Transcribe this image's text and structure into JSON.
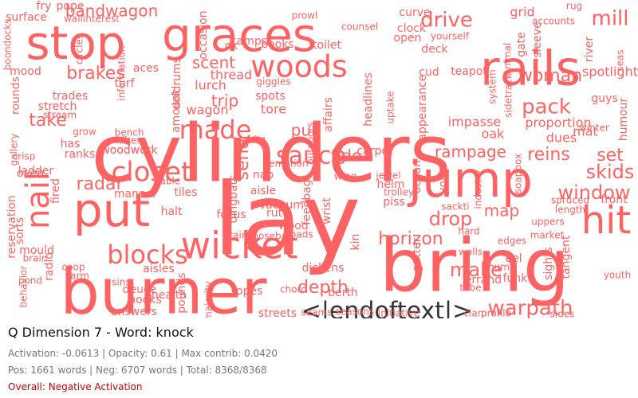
{
  "header": {
    "title": "Q Dimension 7 - Word: knock",
    "stats": "Activation: -0.0613 | Opacity: 0.61 | Max contrib: 0.0420",
    "counts": "Pos: 1661 words | Neg: 6707 words | Total: 8368/8368",
    "overall": "Overall: Negative Activation"
  },
  "colors": {
    "negative_word": "#ff6262",
    "special_token": "#333333",
    "overall_text": "#cc0000"
  },
  "cloud": {
    "words": [
      [
        "cylinders",
        100,
        340,
        200,
        0,
        0
      ],
      [
        "lay",
        125,
        360,
        285,
        0,
        0
      ],
      [
        "bring",
        92,
        595,
        340,
        0,
        0
      ],
      [
        "burner",
        78,
        205,
        372,
        0,
        0
      ],
      [
        "graces",
        58,
        300,
        48,
        0,
        0
      ],
      [
        "stop",
        58,
        95,
        58,
        0,
        0
      ],
      [
        "rails",
        60,
        665,
        90,
        0,
        0
      ],
      [
        "jump",
        62,
        590,
        230,
        0,
        0
      ],
      [
        "put",
        58,
        140,
        268,
        0,
        0
      ],
      [
        "woods",
        38,
        375,
        86,
        0,
        0
      ],
      [
        "wicket",
        46,
        300,
        312,
        0,
        0
      ],
      [
        "blocks",
        32,
        185,
        322,
        0,
        0
      ],
      [
        "closet",
        34,
        190,
        218,
        0,
        0
      ],
      [
        "made",
        32,
        270,
        165,
        0,
        0
      ],
      [
        "sauce",
        30,
        390,
        197,
        0,
        0
      ],
      [
        "<|endoftext|>",
        30,
        485,
        392,
        0,
        1
      ],
      [
        "nail",
        40,
        50,
        252,
        1,
        0
      ],
      [
        "hit",
        48,
        760,
        280,
        0,
        0
      ],
      [
        "pack",
        26,
        685,
        135,
        0,
        0
      ],
      [
        "drive",
        26,
        560,
        26,
        0,
        0
      ],
      [
        "mill",
        26,
        765,
        24,
        0,
        0
      ],
      [
        "woman",
        22,
        690,
        96,
        0,
        0
      ],
      [
        "warpath",
        26,
        665,
        388,
        0,
        0
      ],
      [
        "make",
        24,
        597,
        340,
        0,
        0
      ],
      [
        "drop",
        24,
        565,
        276,
        0,
        0
      ],
      [
        "window",
        24,
        745,
        243,
        0,
        0
      ],
      [
        "skids",
        24,
        765,
        217,
        0,
        0
      ],
      [
        "reins",
        22,
        688,
        195,
        0,
        0
      ],
      [
        "set",
        22,
        765,
        196,
        0,
        0
      ],
      [
        "horizon",
        22,
        515,
        301,
        0,
        0
      ],
      [
        "depth",
        22,
        405,
        362,
        0,
        0
      ],
      [
        "brakes",
        22,
        120,
        93,
        0,
        0
      ],
      [
        "bandwagon",
        20,
        140,
        15,
        0,
        0
      ],
      [
        "scent",
        20,
        268,
        80,
        0,
        0
      ],
      [
        "pull",
        20,
        383,
        165,
        0,
        0
      ],
      [
        "send",
        22,
        305,
        200,
        1,
        0
      ],
      [
        "tide",
        20,
        434,
        197,
        0,
        0
      ],
      [
        "radar",
        22,
        125,
        232,
        0,
        0
      ],
      [
        "trip",
        20,
        282,
        128,
        0,
        0
      ],
      [
        "take",
        22,
        60,
        152,
        0,
        0
      ],
      [
        "rampage",
        20,
        590,
        192,
        0,
        0
      ],
      [
        "map",
        20,
        629,
        266,
        0,
        0
      ],
      [
        "proportion",
        16,
        700,
        155,
        0,
        0
      ],
      [
        "dues",
        16,
        704,
        174,
        0,
        0
      ],
      [
        "mat",
        16,
        734,
        166,
        0,
        0
      ],
      [
        "impasse",
        16,
        595,
        154,
        0,
        0
      ],
      [
        "oak",
        16,
        618,
        169,
        0,
        0
      ],
      [
        "spotlight",
        16,
        765,
        91,
        0,
        0
      ],
      [
        "rug",
        12,
        720,
        8,
        0,
        0
      ],
      [
        "grid",
        16,
        655,
        16,
        0,
        0
      ],
      [
        "curve",
        14,
        520,
        16,
        0,
        0
      ],
      [
        "clock",
        14,
        516,
        36,
        0,
        0
      ],
      [
        "open",
        14,
        511,
        48,
        0,
        0
      ],
      [
        "deck",
        14,
        545,
        62,
        0,
        0
      ],
      [
        "teapot",
        14,
        588,
        90,
        0,
        0
      ],
      [
        "cud",
        14,
        538,
        91,
        0,
        0
      ],
      [
        "camps",
        14,
        312,
        52,
        0,
        0
      ],
      [
        "books",
        14,
        348,
        56,
        0,
        0
      ],
      [
        "toilet",
        14,
        410,
        57,
        0,
        0
      ],
      [
        "counsel",
        12,
        451,
        34,
        0,
        0
      ],
      [
        "prowl",
        12,
        382,
        20,
        0,
        0
      ],
      [
        "ox",
        14,
        290,
        58,
        0,
        0
      ],
      [
        "thread",
        16,
        290,
        95,
        0,
        0
      ],
      [
        "aces",
        14,
        183,
        86,
        0,
        0
      ],
      [
        "turf",
        14,
        156,
        105,
        0,
        0
      ],
      [
        "trades",
        14,
        88,
        121,
        0,
        0
      ],
      [
        "stretch",
        14,
        72,
        134,
        0,
        0
      ],
      [
        "rounds",
        14,
        20,
        120,
        1,
        0
      ],
      [
        "mood",
        14,
        32,
        90,
        0,
        0
      ],
      [
        "pope",
        14,
        88,
        8,
        0,
        0
      ],
      [
        "surface",
        14,
        33,
        22,
        0,
        0
      ],
      [
        "fry",
        14,
        55,
        8,
        0,
        0
      ],
      [
        "lurch",
        16,
        264,
        108,
        0,
        0
      ],
      [
        "wagon",
        16,
        260,
        139,
        0,
        0
      ],
      [
        "doldrums",
        14,
        222,
        105,
        1,
        0
      ],
      [
        "spots",
        14,
        339,
        121,
        0,
        0
      ],
      [
        "tore",
        16,
        343,
        138,
        0,
        0
      ],
      [
        "headlines",
        14,
        462,
        125,
        1,
        0
      ],
      [
        "affairs",
        14,
        412,
        144,
        1,
        0
      ],
      [
        "uptake",
        12,
        490,
        135,
        1,
        0
      ],
      [
        "appearance",
        14,
        530,
        135,
        1,
        0
      ],
      [
        "ranks",
        14,
        100,
        194,
        0,
        0
      ],
      [
        "has",
        14,
        88,
        181,
        0,
        0
      ],
      [
        "woodwork",
        14,
        162,
        189,
        0,
        0
      ],
      [
        "ladder",
        14,
        45,
        215,
        0,
        0
      ],
      [
        "oven",
        14,
        38,
        218,
        0,
        0
      ],
      [
        "tiles",
        14,
        233,
        242,
        0,
        0
      ],
      [
        "manner",
        14,
        170,
        244,
        0,
        0
      ],
      [
        "table",
        12,
        211,
        228,
        0,
        0
      ],
      [
        "halt",
        14,
        215,
        266,
        0,
        0
      ],
      [
        "focus",
        14,
        290,
        270,
        0,
        0
      ],
      [
        "aisle",
        14,
        330,
        240,
        0,
        0
      ],
      [
        "nap",
        14,
        330,
        220,
        0,
        0
      ],
      [
        "carpet",
        14,
        470,
        190,
        0,
        0
      ],
      [
        "piss",
        14,
        494,
        254,
        0,
        0
      ],
      [
        "helm",
        14,
        490,
        232,
        0,
        0
      ],
      [
        "trolley",
        12,
        500,
        242,
        0,
        0
      ],
      [
        "gutter",
        14,
        523,
        320,
        1,
        0
      ],
      [
        "ocean",
        14,
        523,
        222,
        1,
        0
      ],
      [
        "your",
        14,
        556,
        228,
        1,
        0
      ],
      [
        "wrist",
        14,
        410,
        265,
        1,
        0
      ],
      [
        "rut",
        14,
        344,
        268,
        0,
        0
      ],
      [
        "vacuum",
        14,
        353,
        258,
        0,
        0
      ],
      [
        "wood",
        14,
        368,
        284,
        0,
        0
      ],
      [
        "roads",
        12,
        376,
        295,
        0,
        0
      ],
      [
        "ropes",
        14,
        310,
        366,
        0,
        0
      ],
      [
        "streets",
        14,
        348,
        394,
        0,
        0
      ],
      [
        "answers",
        14,
        168,
        392,
        0,
        0
      ],
      [
        "health",
        14,
        212,
        371,
        0,
        0
      ],
      [
        "hooks",
        14,
        182,
        377,
        0,
        0
      ],
      [
        "deuce",
        14,
        175,
        364,
        0,
        0
      ],
      [
        "eel",
        14,
        644,
        325,
        0,
        0
      ],
      [
        "funk",
        14,
        646,
        350,
        0,
        0
      ],
      [
        "errand",
        14,
        606,
        352,
        0,
        0
      ],
      [
        "tube",
        12,
        590,
        362,
        0,
        0
      ],
      [
        "berth",
        14,
        430,
        368,
        0,
        0
      ],
      [
        "dickens",
        14,
        405,
        337,
        0,
        0
      ],
      [
        "chord",
        12,
        368,
        364,
        0,
        0
      ],
      [
        "market",
        12,
        686,
        296,
        0,
        0
      ],
      [
        "uppers",
        12,
        687,
        279,
        0,
        0
      ],
      [
        "front",
        14,
        770,
        251,
        0,
        0
      ],
      [
        "youth",
        12,
        774,
        346,
        0,
        0
      ],
      [
        "hard",
        12,
        588,
        291,
        0,
        0
      ],
      [
        "seams",
        12,
        397,
        393,
        0,
        0
      ],
      [
        "seasons",
        12,
        445,
        392,
        0,
        0
      ],
      [
        "initiative",
        12,
        500,
        394,
        0,
        0
      ],
      [
        "pounds",
        14,
        228,
        368,
        1,
        0
      ],
      [
        "majority",
        12,
        262,
        378,
        1,
        0
      ],
      [
        "behavior",
        12,
        30,
        360,
        1,
        0
      ],
      [
        "radio",
        14,
        62,
        335,
        1,
        0
      ],
      [
        "sorts",
        14,
        25,
        290,
        1,
        0
      ],
      [
        "reservation",
        14,
        15,
        285,
        1,
        0
      ],
      [
        "fired",
        14,
        70,
        240,
        1,
        0
      ],
      [
        "mould",
        14,
        46,
        315,
        0,
        0
      ],
      [
        "brain",
        12,
        44,
        325,
        0,
        0
      ],
      [
        "pond",
        12,
        38,
        353,
        0,
        0
      ],
      [
        "sins",
        12,
        152,
        355,
        0,
        0
      ],
      [
        "coop",
        12,
        92,
        336,
        0,
        0
      ],
      [
        "farm",
        12,
        98,
        347,
        0,
        0
      ],
      [
        "aisles",
        14,
        199,
        338,
        0,
        0
      ],
      [
        "crisp",
        12,
        30,
        197,
        0,
        0
      ],
      [
        "woodwork",
        14,
        162,
        189,
        0,
        0
      ],
      [
        "fritz",
        12,
        321,
        176,
        0,
        0
      ],
      [
        "dingbats",
        14,
        293,
        250,
        1,
        0
      ],
      [
        "feedbag",
        14,
        385,
        254,
        1,
        0
      ],
      [
        "nosebag",
        12,
        342,
        297,
        0,
        0
      ],
      [
        "grain",
        12,
        295,
        296,
        0,
        0
      ],
      [
        "kin",
        14,
        446,
        304,
        1,
        0
      ],
      [
        "sights",
        14,
        688,
        331,
        1,
        0
      ],
      [
        "tangent",
        14,
        710,
        323,
        1,
        0
      ],
      [
        "animal",
        12,
        637,
        74,
        1,
        0
      ],
      [
        "gate",
        14,
        654,
        56,
        1,
        0
      ],
      [
        "sleeve",
        14,
        674,
        50,
        1,
        0
      ],
      [
        "river",
        14,
        739,
        62,
        1,
        0
      ],
      [
        "seas",
        12,
        778,
        76,
        1,
        0
      ],
      [
        "humour",
        14,
        782,
        150,
        1,
        0
      ],
      [
        "winter",
        12,
        745,
        161,
        0,
        0
      ],
      [
        "system",
        12,
        618,
        109,
        1,
        0
      ],
      [
        "sidetrack",
        12,
        638,
        120,
        1,
        0
      ],
      [
        "soapbox",
        12,
        650,
        218,
        1,
        0
      ],
      [
        "industry",
        12,
        600,
        238,
        1,
        0
      ],
      [
        "length",
        12,
        715,
        264,
        0,
        0
      ],
      [
        "spruced",
        12,
        715,
        252,
        0,
        0
      ],
      [
        "accounts",
        12,
        694,
        27,
        0,
        0
      ],
      [
        "yourself",
        12,
        564,
        46,
        0,
        0
      ],
      [
        "edges",
        12,
        642,
        303,
        0,
        0
      ],
      [
        "thumb",
        12,
        627,
        336,
        0,
        0
      ],
      [
        "walls",
        12,
        590,
        317,
        0,
        0
      ],
      [
        "sackti",
        12,
        571,
        260,
        0,
        0
      ],
      [
        "profile",
        12,
        622,
        394,
        0,
        0
      ],
      [
        "sides",
        12,
        705,
        395,
        0,
        0
      ],
      [
        "clam",
        12,
        596,
        394,
        0,
        0
      ],
      [
        "jewel",
        12,
        487,
        221,
        0,
        0
      ],
      [
        "wing",
        12,
        433,
        222,
        0,
        0
      ],
      [
        "occasion",
        14,
        255,
        44,
        1,
        0
      ],
      [
        "amount",
        14,
        221,
        140,
        1,
        0
      ],
      [
        "information",
        12,
        153,
        92,
        1,
        0
      ],
      [
        "boondocks",
        12,
        10,
        56,
        1,
        0
      ],
      [
        "wallinterest",
        12,
        115,
        24,
        0,
        0
      ],
      [
        "circles",
        12,
        100,
        62,
        1,
        0
      ],
      [
        "stream",
        12,
        75,
        145,
        0,
        0
      ],
      [
        "grow",
        12,
        106,
        166,
        0,
        0
      ],
      [
        "bench",
        12,
        162,
        167,
        0,
        0
      ],
      [
        "kilter",
        12,
        161,
        177,
        0,
        0
      ],
      [
        "gallery",
        12,
        18,
        188,
        1,
        0
      ],
      [
        "emotion",
        12,
        362,
        206,
        0,
        0
      ],
      [
        "giggles",
        12,
        343,
        103,
        0,
        0
      ],
      [
        "outdoors",
        12,
        390,
        180,
        1,
        0
      ],
      [
        "guys",
        14,
        758,
        124,
        0,
        0
      ]
    ]
  }
}
